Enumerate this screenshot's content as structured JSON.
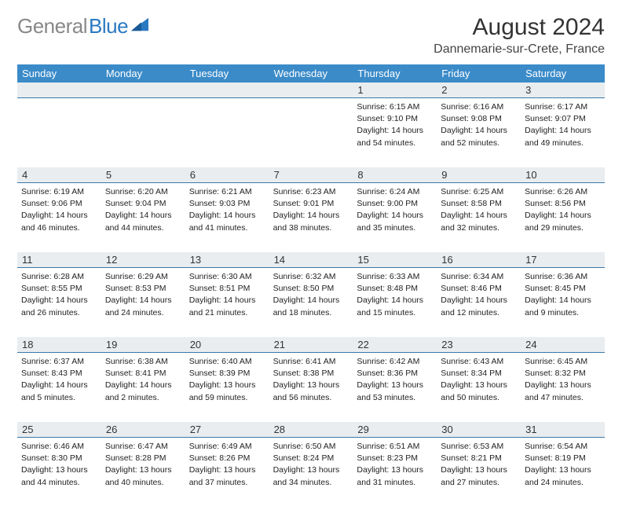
{
  "colors": {
    "header_bg": "#3b8bc9",
    "daynum_bg": "#e9edf0",
    "daynum_border": "#3b78a8",
    "logo_gray": "#888888",
    "logo_blue": "#2b79c2",
    "text": "#222222"
  },
  "logo": {
    "part1": "General",
    "part2": "Blue"
  },
  "title": "August 2024",
  "location": "Dannemarie-sur-Crete, France",
  "day_headers": [
    "Sunday",
    "Monday",
    "Tuesday",
    "Wednesday",
    "Thursday",
    "Friday",
    "Saturday"
  ],
  "weeks": [
    [
      {
        "num": "",
        "sunrise": "",
        "sunset": "",
        "daylight1": "",
        "daylight2": ""
      },
      {
        "num": "",
        "sunrise": "",
        "sunset": "",
        "daylight1": "",
        "daylight2": ""
      },
      {
        "num": "",
        "sunrise": "",
        "sunset": "",
        "daylight1": "",
        "daylight2": ""
      },
      {
        "num": "",
        "sunrise": "",
        "sunset": "",
        "daylight1": "",
        "daylight2": ""
      },
      {
        "num": "1",
        "sunrise": "Sunrise: 6:15 AM",
        "sunset": "Sunset: 9:10 PM",
        "daylight1": "Daylight: 14 hours",
        "daylight2": "and 54 minutes."
      },
      {
        "num": "2",
        "sunrise": "Sunrise: 6:16 AM",
        "sunset": "Sunset: 9:08 PM",
        "daylight1": "Daylight: 14 hours",
        "daylight2": "and 52 minutes."
      },
      {
        "num": "3",
        "sunrise": "Sunrise: 6:17 AM",
        "sunset": "Sunset: 9:07 PM",
        "daylight1": "Daylight: 14 hours",
        "daylight2": "and 49 minutes."
      }
    ],
    [
      {
        "num": "4",
        "sunrise": "Sunrise: 6:19 AM",
        "sunset": "Sunset: 9:06 PM",
        "daylight1": "Daylight: 14 hours",
        "daylight2": "and 46 minutes."
      },
      {
        "num": "5",
        "sunrise": "Sunrise: 6:20 AM",
        "sunset": "Sunset: 9:04 PM",
        "daylight1": "Daylight: 14 hours",
        "daylight2": "and 44 minutes."
      },
      {
        "num": "6",
        "sunrise": "Sunrise: 6:21 AM",
        "sunset": "Sunset: 9:03 PM",
        "daylight1": "Daylight: 14 hours",
        "daylight2": "and 41 minutes."
      },
      {
        "num": "7",
        "sunrise": "Sunrise: 6:23 AM",
        "sunset": "Sunset: 9:01 PM",
        "daylight1": "Daylight: 14 hours",
        "daylight2": "and 38 minutes."
      },
      {
        "num": "8",
        "sunrise": "Sunrise: 6:24 AM",
        "sunset": "Sunset: 9:00 PM",
        "daylight1": "Daylight: 14 hours",
        "daylight2": "and 35 minutes."
      },
      {
        "num": "9",
        "sunrise": "Sunrise: 6:25 AM",
        "sunset": "Sunset: 8:58 PM",
        "daylight1": "Daylight: 14 hours",
        "daylight2": "and 32 minutes."
      },
      {
        "num": "10",
        "sunrise": "Sunrise: 6:26 AM",
        "sunset": "Sunset: 8:56 PM",
        "daylight1": "Daylight: 14 hours",
        "daylight2": "and 29 minutes."
      }
    ],
    [
      {
        "num": "11",
        "sunrise": "Sunrise: 6:28 AM",
        "sunset": "Sunset: 8:55 PM",
        "daylight1": "Daylight: 14 hours",
        "daylight2": "and 26 minutes."
      },
      {
        "num": "12",
        "sunrise": "Sunrise: 6:29 AM",
        "sunset": "Sunset: 8:53 PM",
        "daylight1": "Daylight: 14 hours",
        "daylight2": "and 24 minutes."
      },
      {
        "num": "13",
        "sunrise": "Sunrise: 6:30 AM",
        "sunset": "Sunset: 8:51 PM",
        "daylight1": "Daylight: 14 hours",
        "daylight2": "and 21 minutes."
      },
      {
        "num": "14",
        "sunrise": "Sunrise: 6:32 AM",
        "sunset": "Sunset: 8:50 PM",
        "daylight1": "Daylight: 14 hours",
        "daylight2": "and 18 minutes."
      },
      {
        "num": "15",
        "sunrise": "Sunrise: 6:33 AM",
        "sunset": "Sunset: 8:48 PM",
        "daylight1": "Daylight: 14 hours",
        "daylight2": "and 15 minutes."
      },
      {
        "num": "16",
        "sunrise": "Sunrise: 6:34 AM",
        "sunset": "Sunset: 8:46 PM",
        "daylight1": "Daylight: 14 hours",
        "daylight2": "and 12 minutes."
      },
      {
        "num": "17",
        "sunrise": "Sunrise: 6:36 AM",
        "sunset": "Sunset: 8:45 PM",
        "daylight1": "Daylight: 14 hours",
        "daylight2": "and 9 minutes."
      }
    ],
    [
      {
        "num": "18",
        "sunrise": "Sunrise: 6:37 AM",
        "sunset": "Sunset: 8:43 PM",
        "daylight1": "Daylight: 14 hours",
        "daylight2": "and 5 minutes."
      },
      {
        "num": "19",
        "sunrise": "Sunrise: 6:38 AM",
        "sunset": "Sunset: 8:41 PM",
        "daylight1": "Daylight: 14 hours",
        "daylight2": "and 2 minutes."
      },
      {
        "num": "20",
        "sunrise": "Sunrise: 6:40 AM",
        "sunset": "Sunset: 8:39 PM",
        "daylight1": "Daylight: 13 hours",
        "daylight2": "and 59 minutes."
      },
      {
        "num": "21",
        "sunrise": "Sunrise: 6:41 AM",
        "sunset": "Sunset: 8:38 PM",
        "daylight1": "Daylight: 13 hours",
        "daylight2": "and 56 minutes."
      },
      {
        "num": "22",
        "sunrise": "Sunrise: 6:42 AM",
        "sunset": "Sunset: 8:36 PM",
        "daylight1": "Daylight: 13 hours",
        "daylight2": "and 53 minutes."
      },
      {
        "num": "23",
        "sunrise": "Sunrise: 6:43 AM",
        "sunset": "Sunset: 8:34 PM",
        "daylight1": "Daylight: 13 hours",
        "daylight2": "and 50 minutes."
      },
      {
        "num": "24",
        "sunrise": "Sunrise: 6:45 AM",
        "sunset": "Sunset: 8:32 PM",
        "daylight1": "Daylight: 13 hours",
        "daylight2": "and 47 minutes."
      }
    ],
    [
      {
        "num": "25",
        "sunrise": "Sunrise: 6:46 AM",
        "sunset": "Sunset: 8:30 PM",
        "daylight1": "Daylight: 13 hours",
        "daylight2": "and 44 minutes."
      },
      {
        "num": "26",
        "sunrise": "Sunrise: 6:47 AM",
        "sunset": "Sunset: 8:28 PM",
        "daylight1": "Daylight: 13 hours",
        "daylight2": "and 40 minutes."
      },
      {
        "num": "27",
        "sunrise": "Sunrise: 6:49 AM",
        "sunset": "Sunset: 8:26 PM",
        "daylight1": "Daylight: 13 hours",
        "daylight2": "and 37 minutes."
      },
      {
        "num": "28",
        "sunrise": "Sunrise: 6:50 AM",
        "sunset": "Sunset: 8:24 PM",
        "daylight1": "Daylight: 13 hours",
        "daylight2": "and 34 minutes."
      },
      {
        "num": "29",
        "sunrise": "Sunrise: 6:51 AM",
        "sunset": "Sunset: 8:23 PM",
        "daylight1": "Daylight: 13 hours",
        "daylight2": "and 31 minutes."
      },
      {
        "num": "30",
        "sunrise": "Sunrise: 6:53 AM",
        "sunset": "Sunset: 8:21 PM",
        "daylight1": "Daylight: 13 hours",
        "daylight2": "and 27 minutes."
      },
      {
        "num": "31",
        "sunrise": "Sunrise: 6:54 AM",
        "sunset": "Sunset: 8:19 PM",
        "daylight1": "Daylight: 13 hours",
        "daylight2": "and 24 minutes."
      }
    ]
  ]
}
